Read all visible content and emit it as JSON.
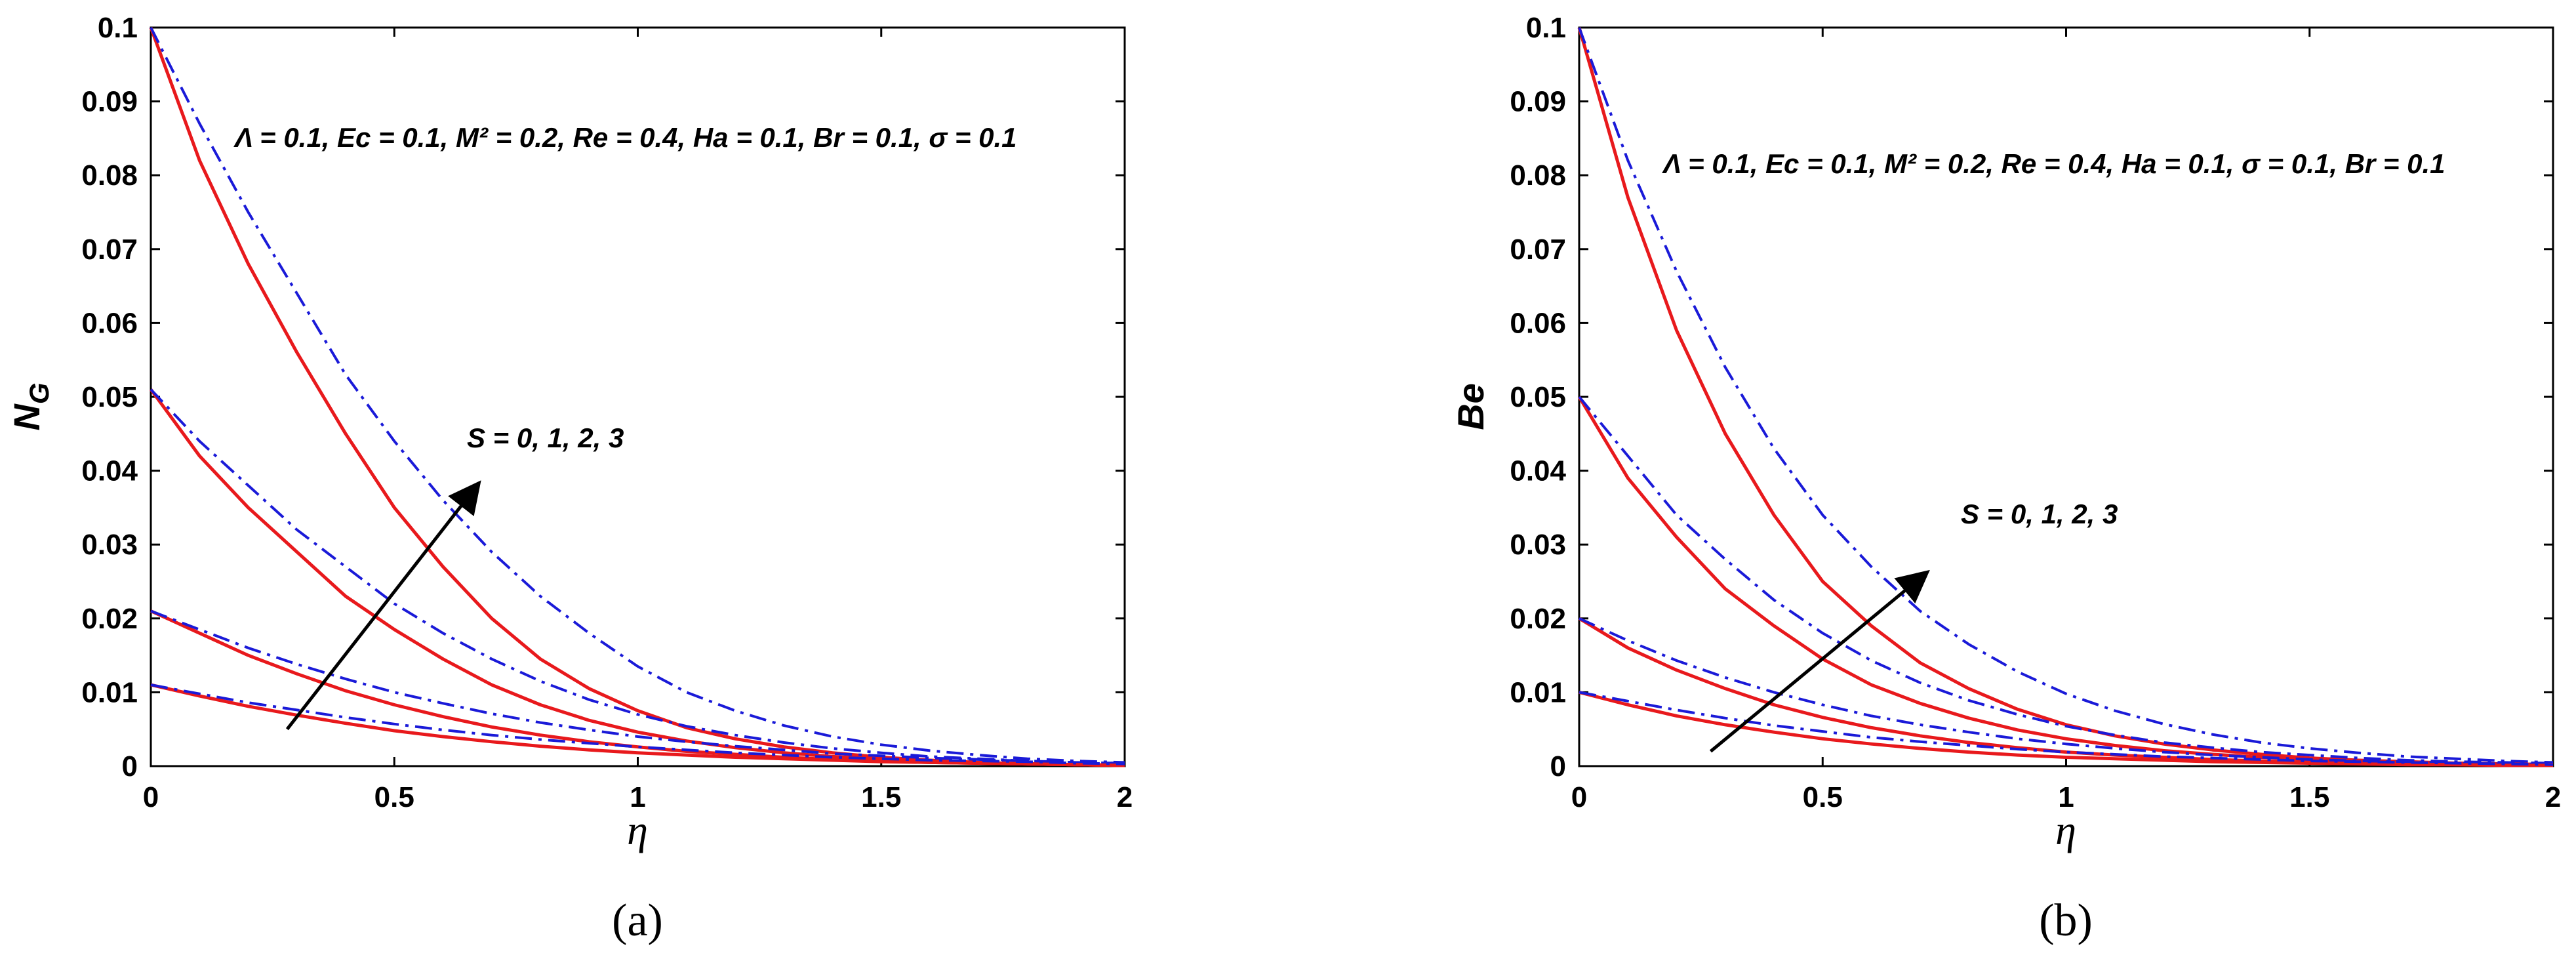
{
  "colors": {
    "solid_series": "#e8191c",
    "dashdot_series": "#1a1ad8",
    "arrow": "#000000",
    "axes": "#000000"
  },
  "chart_data": [
    {
      "type": "line",
      "panel": "(a)",
      "ylabel_main": "N",
      "ylabel_sub": "G",
      "xlabel": "η",
      "xlim": [
        0,
        2
      ],
      "ylim": [
        0,
        0.1
      ],
      "xticks": [
        "0",
        "0.5",
        "1",
        "1.5",
        "2"
      ],
      "yticks": [
        "0",
        "0.01",
        "0.02",
        "0.03",
        "0.04",
        "0.05",
        "0.06",
        "0.07",
        "0.08",
        "0.09",
        "0.1"
      ],
      "params_text": "Λ = 0.1, Ec = 0.1, M² = 0.2, Re = 0.4, Ha = 0.1, Br = 0.1, σ = 0.1",
      "annotation": "S = 0, 1, 2, 3",
      "grid": false,
      "x": [
        0,
        0.1,
        0.2,
        0.3,
        0.4,
        0.5,
        0.6,
        0.7,
        0.8,
        0.9,
        1.0,
        1.1,
        1.2,
        1.3,
        1.4,
        1.5,
        1.6,
        1.7,
        1.8,
        1.9,
        2.0
      ],
      "series": [
        {
          "style": "solid",
          "values": [
            0.1,
            0.082,
            0.068,
            0.056,
            0.045,
            0.035,
            0.027,
            0.02,
            0.0145,
            0.0105,
            0.0075,
            0.0052,
            0.0037,
            0.0026,
            0.0018,
            0.0012,
            0.0008,
            0.0005,
            0.0003,
            0.0002,
            0.0001
          ]
        },
        {
          "style": "dashdot",
          "values": [
            0.1,
            0.087,
            0.075,
            0.064,
            0.053,
            0.044,
            0.036,
            0.029,
            0.023,
            0.018,
            0.0135,
            0.01,
            0.0075,
            0.0055,
            0.004,
            0.0029,
            0.0021,
            0.0015,
            0.001,
            0.0007,
            0.0005
          ]
        },
        {
          "style": "solid",
          "values": [
            0.051,
            0.042,
            0.035,
            0.029,
            0.023,
            0.0185,
            0.0145,
            0.011,
            0.0083,
            0.0062,
            0.0046,
            0.0034,
            0.0025,
            0.0018,
            0.0013,
            0.0009,
            0.0006,
            0.0004,
            0.0003,
            0.0002,
            0.0001
          ]
        },
        {
          "style": "dashdot",
          "values": [
            0.051,
            0.044,
            0.038,
            0.032,
            0.027,
            0.022,
            0.018,
            0.0145,
            0.0115,
            0.009,
            0.007,
            0.0054,
            0.0042,
            0.0032,
            0.0024,
            0.0018,
            0.0013,
            0.001,
            0.0007,
            0.0005,
            0.0004
          ]
        },
        {
          "style": "solid",
          "values": [
            0.021,
            0.018,
            0.015,
            0.0125,
            0.0102,
            0.0083,
            0.0067,
            0.0053,
            0.0042,
            0.0033,
            0.0026,
            0.002,
            0.0016,
            0.0012,
            0.0009,
            0.0007,
            0.0005,
            0.0004,
            0.0003,
            0.0002,
            0.0001
          ]
        },
        {
          "style": "dashdot",
          "values": [
            0.021,
            0.0185,
            0.016,
            0.0138,
            0.0118,
            0.01,
            0.0085,
            0.0071,
            0.0059,
            0.0049,
            0.004,
            0.0033,
            0.0027,
            0.0022,
            0.0017,
            0.0014,
            0.0011,
            0.0009,
            0.0007,
            0.0005,
            0.0004
          ]
        },
        {
          "style": "solid",
          "values": [
            0.011,
            0.0095,
            0.0081,
            0.0069,
            0.0058,
            0.0048,
            0.004,
            0.0033,
            0.0027,
            0.0022,
            0.0018,
            0.0015,
            0.0012,
            0.001,
            0.0008,
            0.0006,
            0.0005,
            0.0004,
            0.0003,
            0.0002,
            0.0001
          ]
        },
        {
          "style": "dashdot",
          "values": [
            0.011,
            0.0098,
            0.0086,
            0.0076,
            0.0066,
            0.0057,
            0.0049,
            0.0042,
            0.0036,
            0.0031,
            0.0026,
            0.0022,
            0.0018,
            0.0015,
            0.0012,
            0.001,
            0.0008,
            0.0007,
            0.0006,
            0.0004,
            0.0003
          ]
        }
      ],
      "arrow": {
        "from": [
          0.28,
          0.005
        ],
        "to": [
          0.67,
          0.038
        ]
      }
    },
    {
      "type": "line",
      "panel": "(b)",
      "ylabel_main": "Be",
      "ylabel_sub": "",
      "xlabel": "η",
      "xlim": [
        0,
        2
      ],
      "ylim": [
        0,
        0.1
      ],
      "xticks": [
        "0",
        "0.5",
        "1",
        "1.5",
        "2"
      ],
      "yticks": [
        "0",
        "0.01",
        "0.02",
        "0.03",
        "0.04",
        "0.05",
        "0.06",
        "0.07",
        "0.08",
        "0.09",
        "0.1"
      ],
      "params_text": "Λ = 0.1, Ec = 0.1, M² = 0.2, Re = 0.4, Ha = 0.1, σ = 0.1, Br = 0.1",
      "annotation": "S = 0, 1, 2, 3",
      "grid": false,
      "x": [
        0,
        0.1,
        0.2,
        0.3,
        0.4,
        0.5,
        0.6,
        0.7,
        0.8,
        0.9,
        1.0,
        1.1,
        1.2,
        1.3,
        1.4,
        1.5,
        1.6,
        1.7,
        1.8,
        1.9,
        2.0
      ],
      "series": [
        {
          "style": "solid",
          "values": [
            0.1,
            0.077,
            0.059,
            0.045,
            0.034,
            0.025,
            0.019,
            0.014,
            0.0105,
            0.0077,
            0.0056,
            0.0041,
            0.003,
            0.0022,
            0.0016,
            0.0011,
            0.0008,
            0.0006,
            0.0004,
            0.0003,
            0.0002
          ]
        },
        {
          "style": "dashdot",
          "values": [
            0.1,
            0.082,
            0.067,
            0.054,
            0.043,
            0.034,
            0.027,
            0.021,
            0.0165,
            0.0128,
            0.0098,
            0.0075,
            0.0057,
            0.0043,
            0.0032,
            0.0024,
            0.0018,
            0.0013,
            0.001,
            0.0007,
            0.0005
          ]
        },
        {
          "style": "solid",
          "values": [
            0.05,
            0.039,
            0.031,
            0.024,
            0.019,
            0.0145,
            0.011,
            0.0085,
            0.0065,
            0.0049,
            0.0037,
            0.0028,
            0.0021,
            0.0016,
            0.0012,
            0.0009,
            0.0007,
            0.0005,
            0.0004,
            0.0003,
            0.0002
          ]
        },
        {
          "style": "dashdot",
          "values": [
            0.05,
            0.042,
            0.034,
            0.028,
            0.0225,
            0.018,
            0.0143,
            0.0113,
            0.0089,
            0.007,
            0.0054,
            0.0042,
            0.0032,
            0.0025,
            0.0019,
            0.0015,
            0.0011,
            0.0008,
            0.0006,
            0.0005,
            0.0004
          ]
        },
        {
          "style": "solid",
          "values": [
            0.02,
            0.016,
            0.013,
            0.0105,
            0.0083,
            0.0066,
            0.0052,
            0.0041,
            0.0032,
            0.0025,
            0.0019,
            0.0015,
            0.0012,
            0.0009,
            0.0007,
            0.0005,
            0.0004,
            0.0003,
            0.0002,
            0.0002,
            0.0001
          ]
        },
        {
          "style": "dashdot",
          "values": [
            0.02,
            0.017,
            0.0143,
            0.012,
            0.01,
            0.0083,
            0.0068,
            0.0056,
            0.0046,
            0.0037,
            0.003,
            0.0024,
            0.0019,
            0.0015,
            0.0012,
            0.0009,
            0.0007,
            0.0006,
            0.0004,
            0.0003,
            0.0003
          ]
        },
        {
          "style": "solid",
          "values": [
            0.01,
            0.0083,
            0.0068,
            0.0056,
            0.0046,
            0.0037,
            0.003,
            0.0024,
            0.0019,
            0.0015,
            0.0012,
            0.001,
            0.0008,
            0.0006,
            0.0005,
            0.0004,
            0.0003,
            0.0002,
            0.0002,
            0.0001,
            0.0001
          ]
        },
        {
          "style": "dashdot",
          "values": [
            0.01,
            0.0088,
            0.0076,
            0.0065,
            0.0055,
            0.0047,
            0.0039,
            0.0033,
            0.0028,
            0.0023,
            0.0019,
            0.0016,
            0.0013,
            0.0011,
            0.0009,
            0.0007,
            0.0006,
            0.0005,
            0.0004,
            0.0003,
            0.0002
          ]
        }
      ],
      "arrow": {
        "from": [
          0.27,
          0.002
        ],
        "to": [
          0.71,
          0.026
        ]
      }
    }
  ]
}
